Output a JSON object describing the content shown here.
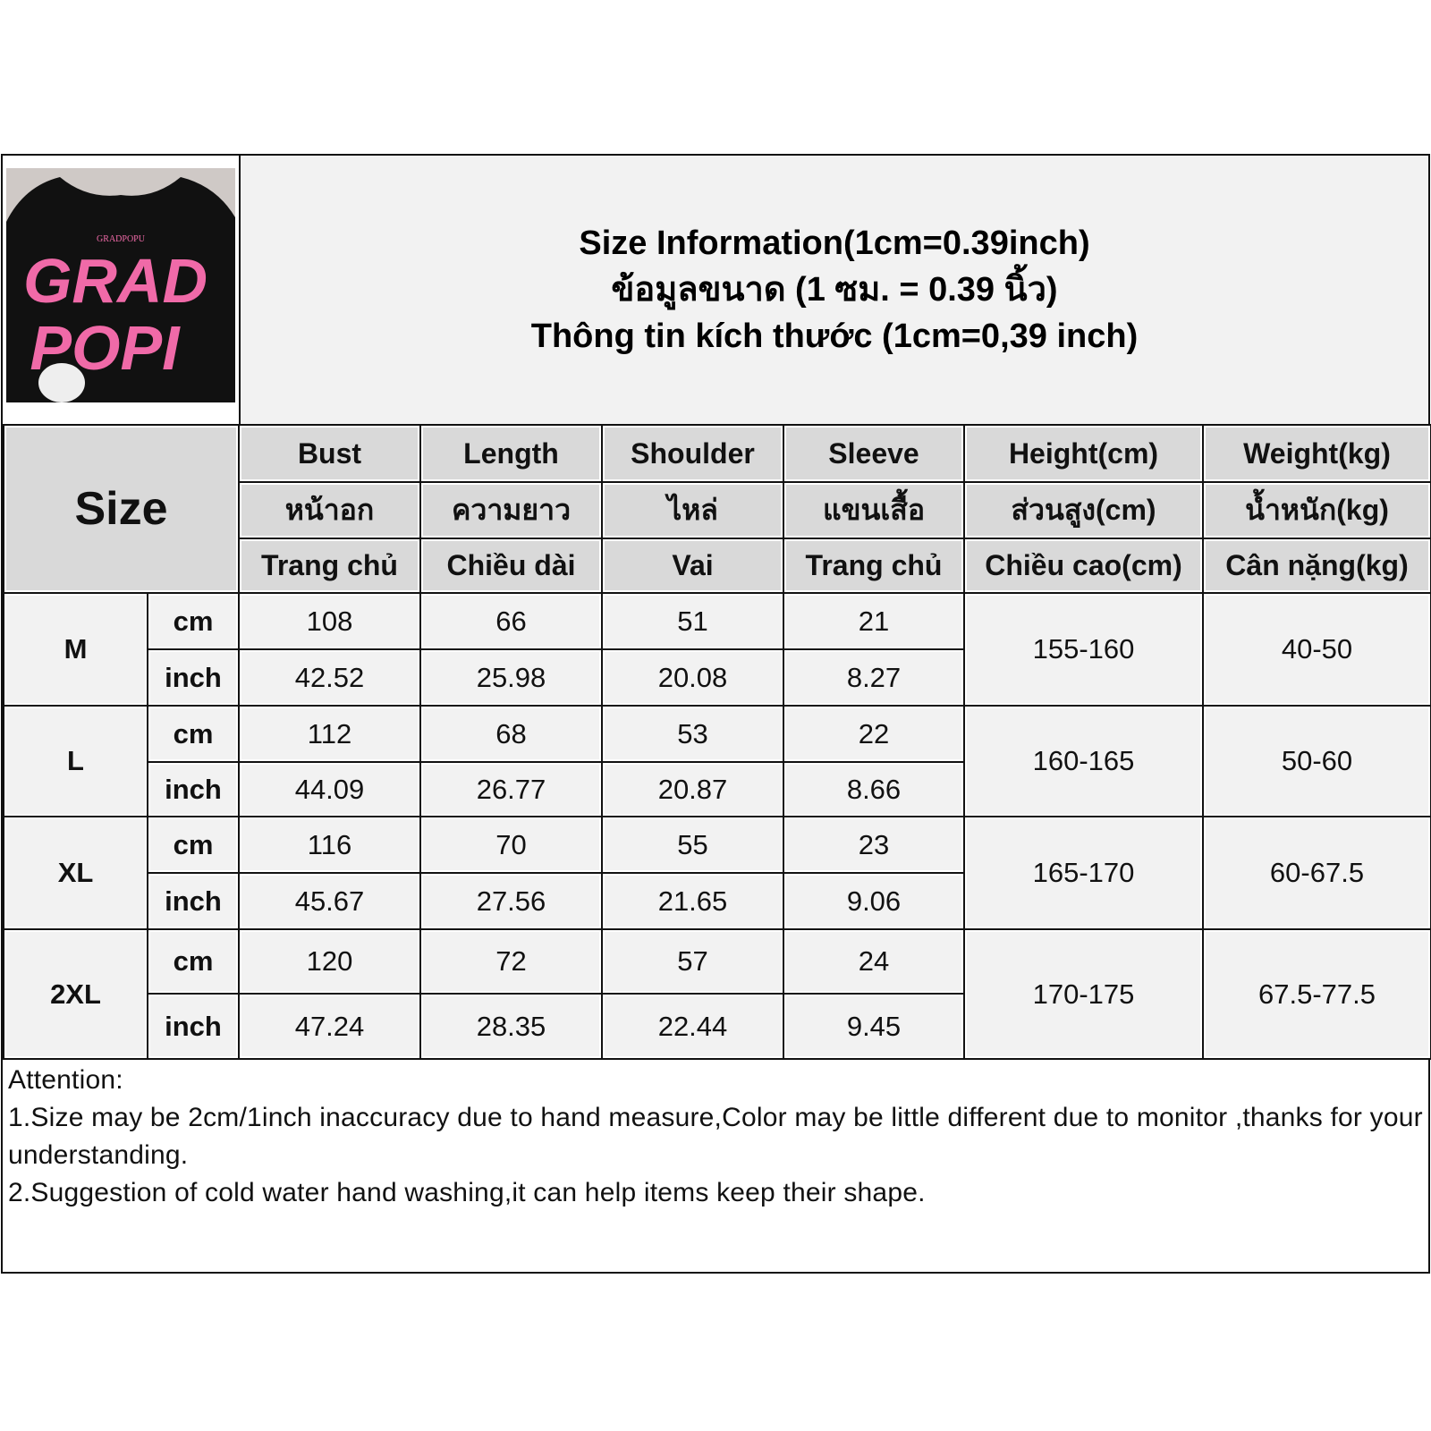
{
  "title_lines": [
    "Size Information(1cm=0.39inch)",
    "ข้อมูลขนาด (1 ซม. = 0.39 นิ้ว)",
    "Thông tin kích thước (1cm=0,39 inch)"
  ],
  "product_image": {
    "print_text": "GRAD POPI",
    "small_text": "GRADPOPU",
    "shirt_color": "#111111",
    "print_color": "#f06aa8"
  },
  "size_label": "Size",
  "columns": [
    {
      "en": "Bust",
      "th": "หน้าอก",
      "vi": "Trang chủ"
    },
    {
      "en": "Length",
      "th": "ความยาว",
      "vi": "Chiều dài"
    },
    {
      "en": "Shoulder",
      "th": "ไหล่",
      "vi": "Vai"
    },
    {
      "en": "Sleeve",
      "th": "แขนเสื้อ",
      "vi": "Trang chủ"
    },
    {
      "en": "Height(cm)",
      "th": "ส่วนสูง(cm)",
      "vi": "Chiều cao(cm)"
    },
    {
      "en": "Weight(kg)",
      "th": "น้ำหนัก(kg)",
      "vi": "Cân nặng(kg)"
    }
  ],
  "units": [
    "cm",
    "inch"
  ],
  "rows": [
    {
      "size": "M",
      "cm": [
        "108",
        "66",
        "51",
        "21"
      ],
      "inch": [
        "42.52",
        "25.98",
        "20.08",
        "8.27"
      ],
      "height": "155-160",
      "weight": "40-50"
    },
    {
      "size": "L",
      "cm": [
        "112",
        "68",
        "53",
        "22"
      ],
      "inch": [
        "44.09",
        "26.77",
        "20.87",
        "8.66"
      ],
      "height": "160-165",
      "weight": "50-60"
    },
    {
      "size": "XL",
      "cm": [
        "116",
        "70",
        "55",
        "23"
      ],
      "inch": [
        "45.67",
        "27.56",
        "21.65",
        "9.06"
      ],
      "height": "165-170",
      "weight": "60-67.5"
    },
    {
      "size": "2XL",
      "cm": [
        "120",
        "72",
        "57",
        "24"
      ],
      "inch": [
        "47.24",
        "28.35",
        "22.44",
        "9.45"
      ],
      "height": "170-175",
      "weight": "67.5-77.5"
    }
  ],
  "notes": [
    "Attention:",
    "1.Size may be 2cm/1inch inaccuracy due to hand measure,Color may be little different due to monitor ,thanks for your understanding.",
    "2.Suggestion of cold water hand washing,it can help items keep their shape."
  ],
  "colors": {
    "header_bg": "#d9d9d9",
    "data_bg": "#f2f2f2",
    "border": "#111111"
  }
}
